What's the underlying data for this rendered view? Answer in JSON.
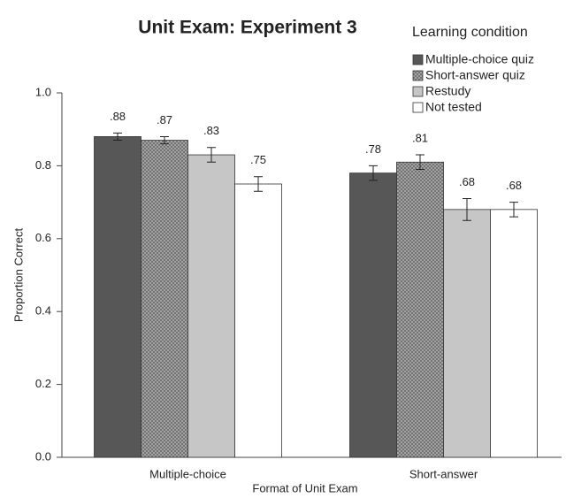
{
  "chart_data": {
    "type": "bar",
    "title": "Unit Exam: Experiment 3",
    "x_label": "Format of Unit Exam",
    "y_label": "Proportion Correct",
    "legend_title": "Learning condition",
    "categories": [
      "Multiple-choice",
      "Short-answer"
    ],
    "series": [
      {
        "name": "Multiple-choice quiz",
        "color": "#575757",
        "values": [
          0.88,
          0.78
        ],
        "value_labels": [
          ".88",
          ".78"
        ],
        "errors": [
          0.01,
          0.02
        ]
      },
      {
        "name": "Short-answer quiz",
        "color": "#9a9a9a",
        "hatch": true,
        "values": [
          0.87,
          0.81
        ],
        "value_labels": [
          ".87",
          ".81"
        ],
        "errors": [
          0.01,
          0.02
        ]
      },
      {
        "name": "Restudy",
        "color": "#c6c6c6",
        "values": [
          0.83,
          0.68
        ],
        "value_labels": [
          ".83",
          ".68"
        ],
        "errors": [
          0.02,
          0.03
        ]
      },
      {
        "name": "Not tested",
        "color": "#ffffff",
        "values": [
          0.75,
          0.68
        ],
        "value_labels": [
          ".75",
          ".68"
        ],
        "errors": [
          0.02,
          0.02
        ]
      }
    ],
    "ylim": [
      0,
      1
    ],
    "yticks": [
      {
        "value": 0,
        "label": "0.0"
      },
      0.2,
      0.4,
      0.6,
      0.8,
      {
        "value": 1,
        "label": "1.0"
      }
    ],
    "grid": false,
    "legend": "top-right"
  }
}
